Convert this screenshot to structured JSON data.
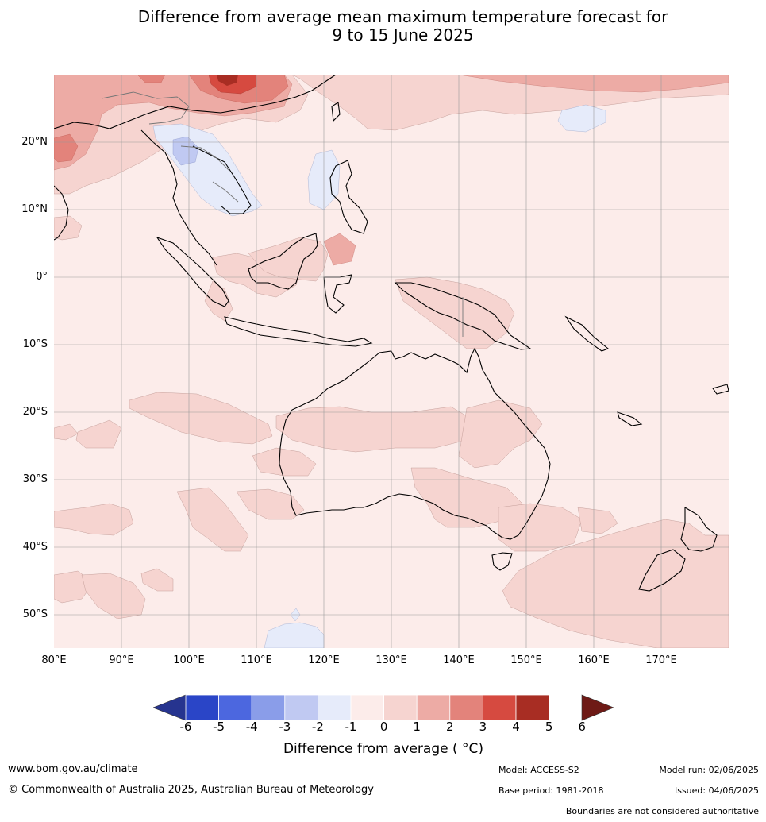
{
  "title_line1": "Difference from average mean maximum temperature forecast for",
  "title_line2": "9 to 15 June 2025",
  "map": {
    "lat_labels": [
      "20°N",
      "10°N",
      "0°",
      "10°S",
      "20°S",
      "30°S",
      "40°S",
      "50°S"
    ],
    "lon_labels": [
      "80°E",
      "90°E",
      "100°E",
      "110°E",
      "120°E",
      "130°E",
      "140°E",
      "150°E",
      "160°E",
      "170°E"
    ]
  },
  "colorbar": {
    "ticks": [
      "-6",
      "-5",
      "-4",
      "-3",
      "-2",
      "-1",
      "0",
      "1",
      "2",
      "3",
      "4",
      "5",
      "6"
    ],
    "colors": [
      "#26348f",
      "#2a45c7",
      "#4c67df",
      "#8a9de9",
      "#c0c9f2",
      "#e6ebfa",
      "#fcecea",
      "#f6d4d0",
      "#edaba5",
      "#e3837b",
      "#d64a40",
      "#a82d23",
      "#6e1a16"
    ],
    "label": "Difference from average ( °C)"
  },
  "footer": {
    "website": "www.bom.gov.au/climate",
    "copyright": "© Commonwealth of Australia 2025, Australian Bureau of Meteorology",
    "model": "Model: ACCESS-S2",
    "base_period": "Base period: 1981-2018",
    "model_run": "Model run: 02/06/2025",
    "issued": "Issued: 04/06/2025",
    "disclaimer": "Boundaries are not considered authoritative"
  }
}
